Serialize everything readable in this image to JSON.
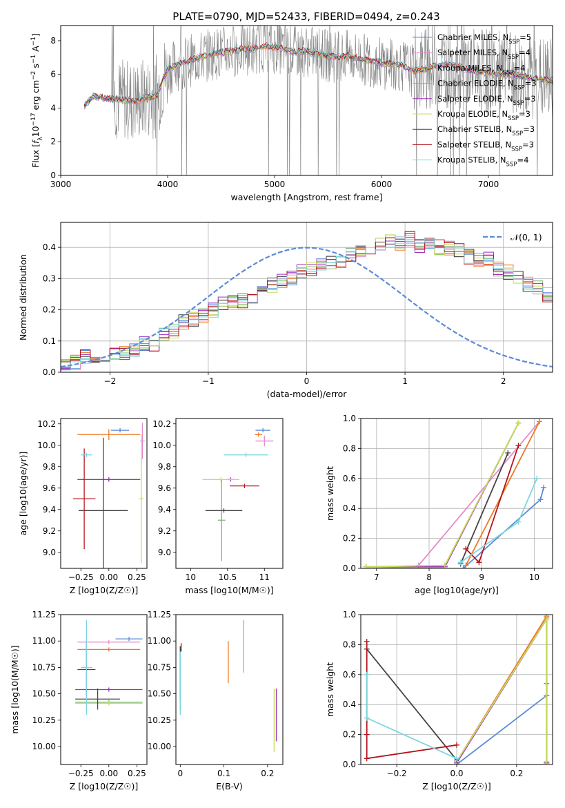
{
  "figure_title": "PLATE=0790, MJD=52433, FIBERID=0494, z=0.243",
  "colors": {
    "chabrier_miles": "#5b8bd6",
    "salpeter_miles": "#e58ac7",
    "kroupa_miles": "#ee7a22",
    "chabrier_elodie": "#7ab86f",
    "salpeter_elodie": "#9c2fc0",
    "kroupa_elodie": "#c8dc5a",
    "chabrier_stelib": "#444444",
    "salpeter_stelib": "#b5141c",
    "kroupa_stelib": "#7dd6df",
    "data_spectrum": "#808080",
    "gaussian": "#5b8bd6"
  },
  "chart_data": [
    {
      "id": "spectrum",
      "type": "line",
      "title": "PLATE=0790, MJD=52433, FIBERID=0494, z=0.243",
      "xlabel": "wavelength [Angstrom, rest frame]",
      "ylabel": "Flux [f_λ 10^-17 erg cm^-2 s^-1 A^-1]",
      "xlim": [
        3000,
        7600
      ],
      "ylim": [
        0,
        8.9
      ],
      "xticks": [
        3000,
        4000,
        5000,
        6000,
        7000
      ],
      "yticks": [
        0,
        2,
        4,
        6,
        8
      ],
      "grid": false,
      "legend_position": "top-right",
      "legend": [
        {
          "label": "Chabrier MILES, N_SSP=5",
          "color": "#5b8bd6"
        },
        {
          "label": "Salpeter MILES, N_SSP=4",
          "color": "#e58ac7"
        },
        {
          "label": "Kroupa MILES, N_SSP=4",
          "color": "#ee7a22"
        },
        {
          "label": "Chabrier ELODIE, N_SSP=3",
          "color": "#7ab86f"
        },
        {
          "label": "Salpeter ELODIE, N_SSP=3",
          "color": "#9c2fc0"
        },
        {
          "label": "Kroupa ELODIE, N_SSP=3",
          "color": "#c8dc5a"
        },
        {
          "label": "Chabrier STELIB, N_SSP=3",
          "color": "#444444"
        },
        {
          "label": "Salpeter STELIB, N_SSP=3",
          "color": "#b5141c"
        },
        {
          "label": "Kroupa STELIB, N_SSP=4",
          "color": "#7dd6df"
        }
      ],
      "model_continuum": {
        "x": [
          3220,
          3300,
          3400,
          3500,
          3600,
          3700,
          3800,
          3900,
          3950,
          4000,
          4100,
          4200,
          4300,
          4400,
          4500,
          4600,
          4700,
          4800,
          4900,
          5000,
          5100,
          5200,
          5300,
          5400,
          5500,
          5600,
          5700,
          5800,
          5900,
          6000,
          6100,
          6200,
          6300,
          6400,
          6500,
          6600,
          6700,
          6800,
          6900,
          7000,
          7100,
          7200,
          7300,
          7400,
          7500,
          7600
        ],
        "y": [
          4.1,
          4.7,
          4.6,
          4.55,
          4.5,
          4.4,
          4.6,
          4.7,
          5.6,
          6.3,
          6.6,
          6.8,
          7.0,
          7.2,
          7.3,
          7.4,
          7.5,
          7.5,
          7.7,
          7.6,
          7.5,
          7.3,
          7.4,
          7.2,
          7.1,
          7.0,
          7.1,
          6.9,
          6.8,
          6.7,
          6.6,
          6.5,
          6.2,
          6.3,
          6.5,
          6.6,
          6.5,
          6.3,
          6.2,
          6.1,
          6.0,
          6.0,
          5.9,
          5.8,
          5.7,
          5.6
        ]
      }
    },
    {
      "id": "residuals",
      "type": "line",
      "xlabel": "(data-model)/error",
      "ylabel": "Normed distribution",
      "xlim": [
        -2.5,
        2.5
      ],
      "ylim": [
        0,
        0.48
      ],
      "xticks": [
        -2,
        -1,
        0,
        1,
        2
      ],
      "yticks": [
        0.0,
        0.1,
        0.2,
        0.3,
        0.4
      ],
      "grid": true,
      "legend_position": "top-right",
      "legend": [
        {
          "label": "𝒩(0, 1)",
          "color": "#5b8bd6",
          "style": "dashed"
        }
      ],
      "histogram": {
        "bin_width": 0.1,
        "x_start": -2.5,
        "values": [
          0.03,
          0.03,
          0.05,
          0.05,
          0.04,
          0.06,
          0.06,
          0.07,
          0.09,
          0.09,
          0.12,
          0.13,
          0.16,
          0.17,
          0.18,
          0.2,
          0.22,
          0.23,
          0.23,
          0.24,
          0.26,
          0.28,
          0.29,
          0.3,
          0.32,
          0.33,
          0.34,
          0.35,
          0.36,
          0.38,
          0.39,
          0.4,
          0.41,
          0.42,
          0.41,
          0.43,
          0.4,
          0.42,
          0.4,
          0.4,
          0.39,
          0.37,
          0.36,
          0.36,
          0.33,
          0.32,
          0.3,
          0.28,
          0.27,
          0.25,
          0.24,
          0.22,
          0.21,
          0.19,
          0.19,
          0.16,
          0.15,
          0.13,
          0.12,
          0.1,
          0.09,
          0.08,
          0.07,
          0.07,
          0.06,
          0.05,
          0.05,
          0.04,
          0.04,
          0.03,
          0.03
        ]
      }
    },
    {
      "id": "age_vs_Z",
      "type": "scatter",
      "xlabel": "Z [log10(Z/Z☉)]",
      "ylabel": "age  [log10(age/yr)]",
      "xlim": [
        -0.43,
        0.34
      ],
      "ylim": [
        8.85,
        10.25
      ],
      "xticks": [
        -0.25,
        0.0,
        0.25
      ],
      "xtick_labels": [
        "−0.25",
        "0.00",
        "0.25"
      ],
      "yticks": [
        9.0,
        9.2,
        9.4,
        9.6,
        9.8,
        10.0,
        10.2
      ],
      "grid": false,
      "points": [
        {
          "series": "Chabrier MILES",
          "x": 0.1,
          "xerr": 0.08,
          "y": 10.14,
          "yerr": 0.02
        },
        {
          "series": "Salpeter MILES",
          "x": 0.3,
          "xerr": 0.02,
          "y": 10.04,
          "yerr": 0.17
        },
        {
          "series": "Kroupa MILES",
          "x": 0.0,
          "xerr": 0.28,
          "y": 10.1,
          "yerr": 0.05
        },
        {
          "series": "Chabrier ELODIE",
          "x": 0.0,
          "xerr": 0.28,
          "y": 9.68,
          "yerr": 0.02
        },
        {
          "series": "Salpeter ELODIE",
          "x": 0.0,
          "xerr": 0.28,
          "y": 9.68,
          "yerr": 0.02
        },
        {
          "series": "Kroupa ELODIE",
          "x": 0.29,
          "xerr": 0.02,
          "y": 9.5,
          "yerr": 0.6
        },
        {
          "series": "Chabrier STELIB",
          "x": -0.05,
          "xerr": 0.22,
          "y": 9.39,
          "yerr": 0.68
        },
        {
          "series": "Salpeter STELIB",
          "x": -0.22,
          "xerr": 0.1,
          "y": 9.5,
          "yerr": 0.47
        },
        {
          "series": "Kroupa STELIB",
          "x": -0.2,
          "xerr": 0.05,
          "y": 9.91,
          "yerr": 0.02
        }
      ]
    },
    {
      "id": "age_vs_mass",
      "type": "scatter",
      "xlabel": "mass [log10(M/M☉)]",
      "xlim": [
        9.8,
        11.25
      ],
      "ylim": [
        8.85,
        10.25
      ],
      "xticks": [
        10.0,
        10.5,
        11.0
      ],
      "yticks": [
        9.0,
        9.2,
        9.4,
        9.6,
        9.8,
        10.0,
        10.2
      ],
      "grid": false,
      "points": [
        {
          "series": "Chabrier MILES",
          "x": 10.98,
          "xerr": 0.1,
          "y": 10.14,
          "yerr": 0.02
        },
        {
          "series": "Salpeter MILES",
          "x": 11.0,
          "xerr": 0.12,
          "y": 10.04,
          "yerr": 0.05
        },
        {
          "series": "Kroupa MILES",
          "x": 10.92,
          "xerr": 0.05,
          "y": 10.1,
          "yerr": 0.02
        },
        {
          "series": "Chabrier ELODIE",
          "x": 10.42,
          "xerr": 0.05,
          "y": 9.3,
          "yerr": 0.38
        },
        {
          "series": "Salpeter ELODIE",
          "x": 10.54,
          "xerr": 0.05,
          "y": 9.68,
          "yerr": 0.02
        },
        {
          "series": "Kroupa ELODIE",
          "x": 10.41,
          "xerr": 0.25,
          "y": 9.68,
          "yerr": 0.02
        },
        {
          "series": "Chabrier STELIB",
          "x": 10.45,
          "xerr": 0.25,
          "y": 9.39,
          "yerr": 0.02
        },
        {
          "series": "Salpeter STELIB",
          "x": 10.73,
          "xerr": 0.2,
          "y": 9.62,
          "yerr": 0.02
        },
        {
          "series": "Kroupa STELIB",
          "x": 10.75,
          "xerr": 0.3,
          "y": 9.91,
          "yerr": 0.02
        }
      ]
    },
    {
      "id": "massweight_vs_age",
      "type": "line",
      "xlabel": "age  [log10(age/yr)]",
      "ylabel": "mass weight",
      "xlim": [
        6.7,
        10.35
      ],
      "ylim": [
        0,
        1.0
      ],
      "xticks": [
        7,
        8,
        9,
        10
      ],
      "yticks": [
        0.0,
        0.2,
        0.4,
        0.6,
        0.8,
        1.0
      ],
      "grid": true,
      "series": [
        {
          "name": "Chabrier MILES",
          "x": [
            8.65,
            10.12,
            10.18
          ],
          "y": [
            0.0,
            0.46,
            0.54
          ]
        },
        {
          "name": "Salpeter MILES",
          "x": [
            7.8,
            10.1
          ],
          "y": [
            0.02,
            0.98
          ]
        },
        {
          "name": "Kroupa MILES",
          "x": [
            8.7,
            10.1
          ],
          "y": [
            0.02,
            0.98
          ]
        },
        {
          "name": "Chabrier ELODIE",
          "x": [
            6.8,
            8.3,
            9.7
          ],
          "y": [
            0.01,
            0.02,
            0.97
          ]
        },
        {
          "name": "Salpeter ELODIE",
          "x": [
            6.8,
            8.3,
            9.7
          ],
          "y": [
            0.01,
            0.01,
            0.97
          ]
        },
        {
          "name": "Kroupa ELODIE",
          "x": [
            6.8,
            8.3,
            9.7
          ],
          "y": [
            0.01,
            0.02,
            0.97
          ]
        },
        {
          "name": "Chabrier STELIB",
          "x": [
            8.6,
            9.5
          ],
          "y": [
            0.03,
            0.77
          ]
        },
        {
          "name": "Salpeter STELIB",
          "x": [
            8.7,
            8.95,
            9.7
          ],
          "y": [
            0.13,
            0.04,
            0.82
          ]
        },
        {
          "name": "Kroupa STELIB",
          "x": [
            8.6,
            9.7,
            10.05
          ],
          "y": [
            0.04,
            0.31,
            0.6
          ]
        }
      ]
    },
    {
      "id": "mass_vs_Z",
      "type": "scatter",
      "xlabel": "Z [log10(Z/Z☉)]",
      "ylabel": "mass [log10(M/M☉)]",
      "xlim": [
        -0.43,
        0.34
      ],
      "ylim": [
        9.83,
        11.25
      ],
      "xticks": [
        -0.25,
        0.0,
        0.25
      ],
      "xtick_labels": [
        "−0.25",
        "0.00",
        "0.25"
      ],
      "yticks": [
        10.0,
        10.25,
        10.5,
        10.75,
        11.0,
        11.25
      ],
      "yticks_labels": [
        "10.00",
        "10.25",
        "10.50",
        "10.75",
        "11.00",
        "11.25"
      ],
      "grid": false,
      "points": [
        {
          "series": "Chabrier MILES",
          "x": 0.18,
          "xerr": 0.12,
          "y": 11.02,
          "yerr": 0.02
        },
        {
          "series": "Salpeter MILES",
          "x": 0.0,
          "xerr": 0.28,
          "y": 10.99,
          "yerr": 0.02
        },
        {
          "series": "Kroupa MILES",
          "x": 0.0,
          "xerr": 0.28,
          "y": 10.92,
          "yerr": 0.02
        },
        {
          "series": "Chabrier ELODIE",
          "x": 0.0,
          "xerr": 0.3,
          "y": 10.42,
          "yerr": 0.02
        },
        {
          "series": "Salpeter ELODIE",
          "x": 0.0,
          "xerr": 0.3,
          "y": 10.54,
          "yerr": 0.02
        },
        {
          "series": "Kroupa ELODIE",
          "x": 0.0,
          "xerr": 0.3,
          "y": 10.41,
          "yerr": 0.02
        },
        {
          "series": "Chabrier STELIB",
          "x": -0.1,
          "xerr": 0.2,
          "y": 10.45,
          "yerr": 0.1
        },
        {
          "series": "Salpeter STELIB",
          "x": -0.2,
          "xerr": 0.08,
          "y": 10.73,
          "yerr": 0.25
        },
        {
          "series": "Kroupa STELIB",
          "x": -0.2,
          "xerr": 0.05,
          "y": 10.75,
          "yerr": 0.45
        }
      ]
    },
    {
      "id": "mass_vs_ebv",
      "type": "scatter",
      "xlabel": "E(B-V)",
      "xlim": [
        -0.01,
        0.235
      ],
      "ylim": [
        9.83,
        11.25
      ],
      "xticks": [
        0.0,
        0.1,
        0.2
      ],
      "yticks": [
        10.0,
        10.25,
        10.5,
        10.75,
        11.0,
        11.25
      ],
      "yticks_labels": [
        "10.00",
        "10.25",
        "10.50",
        "10.75",
        "11.00",
        "11.25"
      ],
      "grid": false,
      "points": [
        {
          "series": "Chabrier MILES",
          "x": 0.0,
          "y": 10.65,
          "yerr": 0.3
        },
        {
          "series": "Salpeter MILES",
          "x": 0.145,
          "y": 10.95,
          "yerr": 0.25
        },
        {
          "series": "Kroupa MILES",
          "x": 0.11,
          "y": 10.8,
          "yerr": 0.2
        },
        {
          "series": "Chabrier ELODIE",
          "x": 0.0,
          "y": 10.65,
          "yerr": 0.3
        },
        {
          "series": "Salpeter ELODIE",
          "x": 0.22,
          "y": 10.3,
          "yerr": 0.25
        },
        {
          "series": "Kroupa ELODIE",
          "x": 0.215,
          "y": 10.25,
          "yerr": 0.3
        },
        {
          "series": "Chabrier STELIB",
          "x": 0.0,
          "y": 10.7,
          "yerr": 0.25
        },
        {
          "series": "Salpeter STELIB",
          "x": 0.002,
          "y": 10.94,
          "yerr": 0.04
        },
        {
          "series": "Kroupa STELIB",
          "x": 0.0,
          "y": 10.6,
          "yerr": 0.3
        }
      ]
    },
    {
      "id": "massweight_vs_Z",
      "type": "line",
      "xlabel": "Z [log10(Z/Z☉)]",
      "ylabel": "mass weight",
      "xlim": [
        -0.32,
        0.32
      ],
      "ylim": [
        0,
        1.0
      ],
      "xticks": [
        -0.2,
        0.0,
        0.2
      ],
      "xtick_labels": [
        "−0.2",
        "0.0",
        "0.2"
      ],
      "yticks": [
        0.0,
        0.2,
        0.4,
        0.6,
        0.8,
        1.0
      ],
      "grid": true,
      "series": [
        {
          "name": "Chabrier MILES",
          "x": [
            0.0,
            0.3,
            0.3
          ],
          "y": [
            0.0,
            0.46,
            0.54
          ]
        },
        {
          "name": "Salpeter MILES",
          "x": [
            0.0,
            0.3
          ],
          "y": [
            0.02,
            0.98
          ]
        },
        {
          "name": "Kroupa MILES",
          "x": [
            0.0,
            0.3
          ],
          "y": [
            0.02,
            0.99
          ]
        },
        {
          "name": "Chabrier ELODIE",
          "x": [
            0.0,
            0.3,
            0.3
          ],
          "y": [
            0.02,
            0.97,
            0.01
          ]
        },
        {
          "name": "Salpeter ELODIE",
          "x": [
            0.0,
            0.3,
            0.3
          ],
          "y": [
            0.01,
            0.97,
            0.01
          ]
        },
        {
          "name": "Kroupa ELODIE",
          "x": [
            0.0,
            0.3,
            0.3
          ],
          "y": [
            0.02,
            0.97,
            0.02
          ]
        },
        {
          "name": "Chabrier STELIB",
          "x": [
            -0.3,
            0.0
          ],
          "y": [
            0.77,
            0.03
          ]
        },
        {
          "name": "Salpeter STELIB",
          "x": [
            -0.3,
            -0.3,
            -0.3,
            0.0
          ],
          "y": [
            0.82,
            0.2,
            0.04,
            0.13
          ]
        },
        {
          "name": "Kroupa STELIB",
          "x": [
            -0.3,
            -0.3,
            0.0
          ],
          "y": [
            0.6,
            0.31,
            0.04
          ]
        }
      ]
    }
  ]
}
